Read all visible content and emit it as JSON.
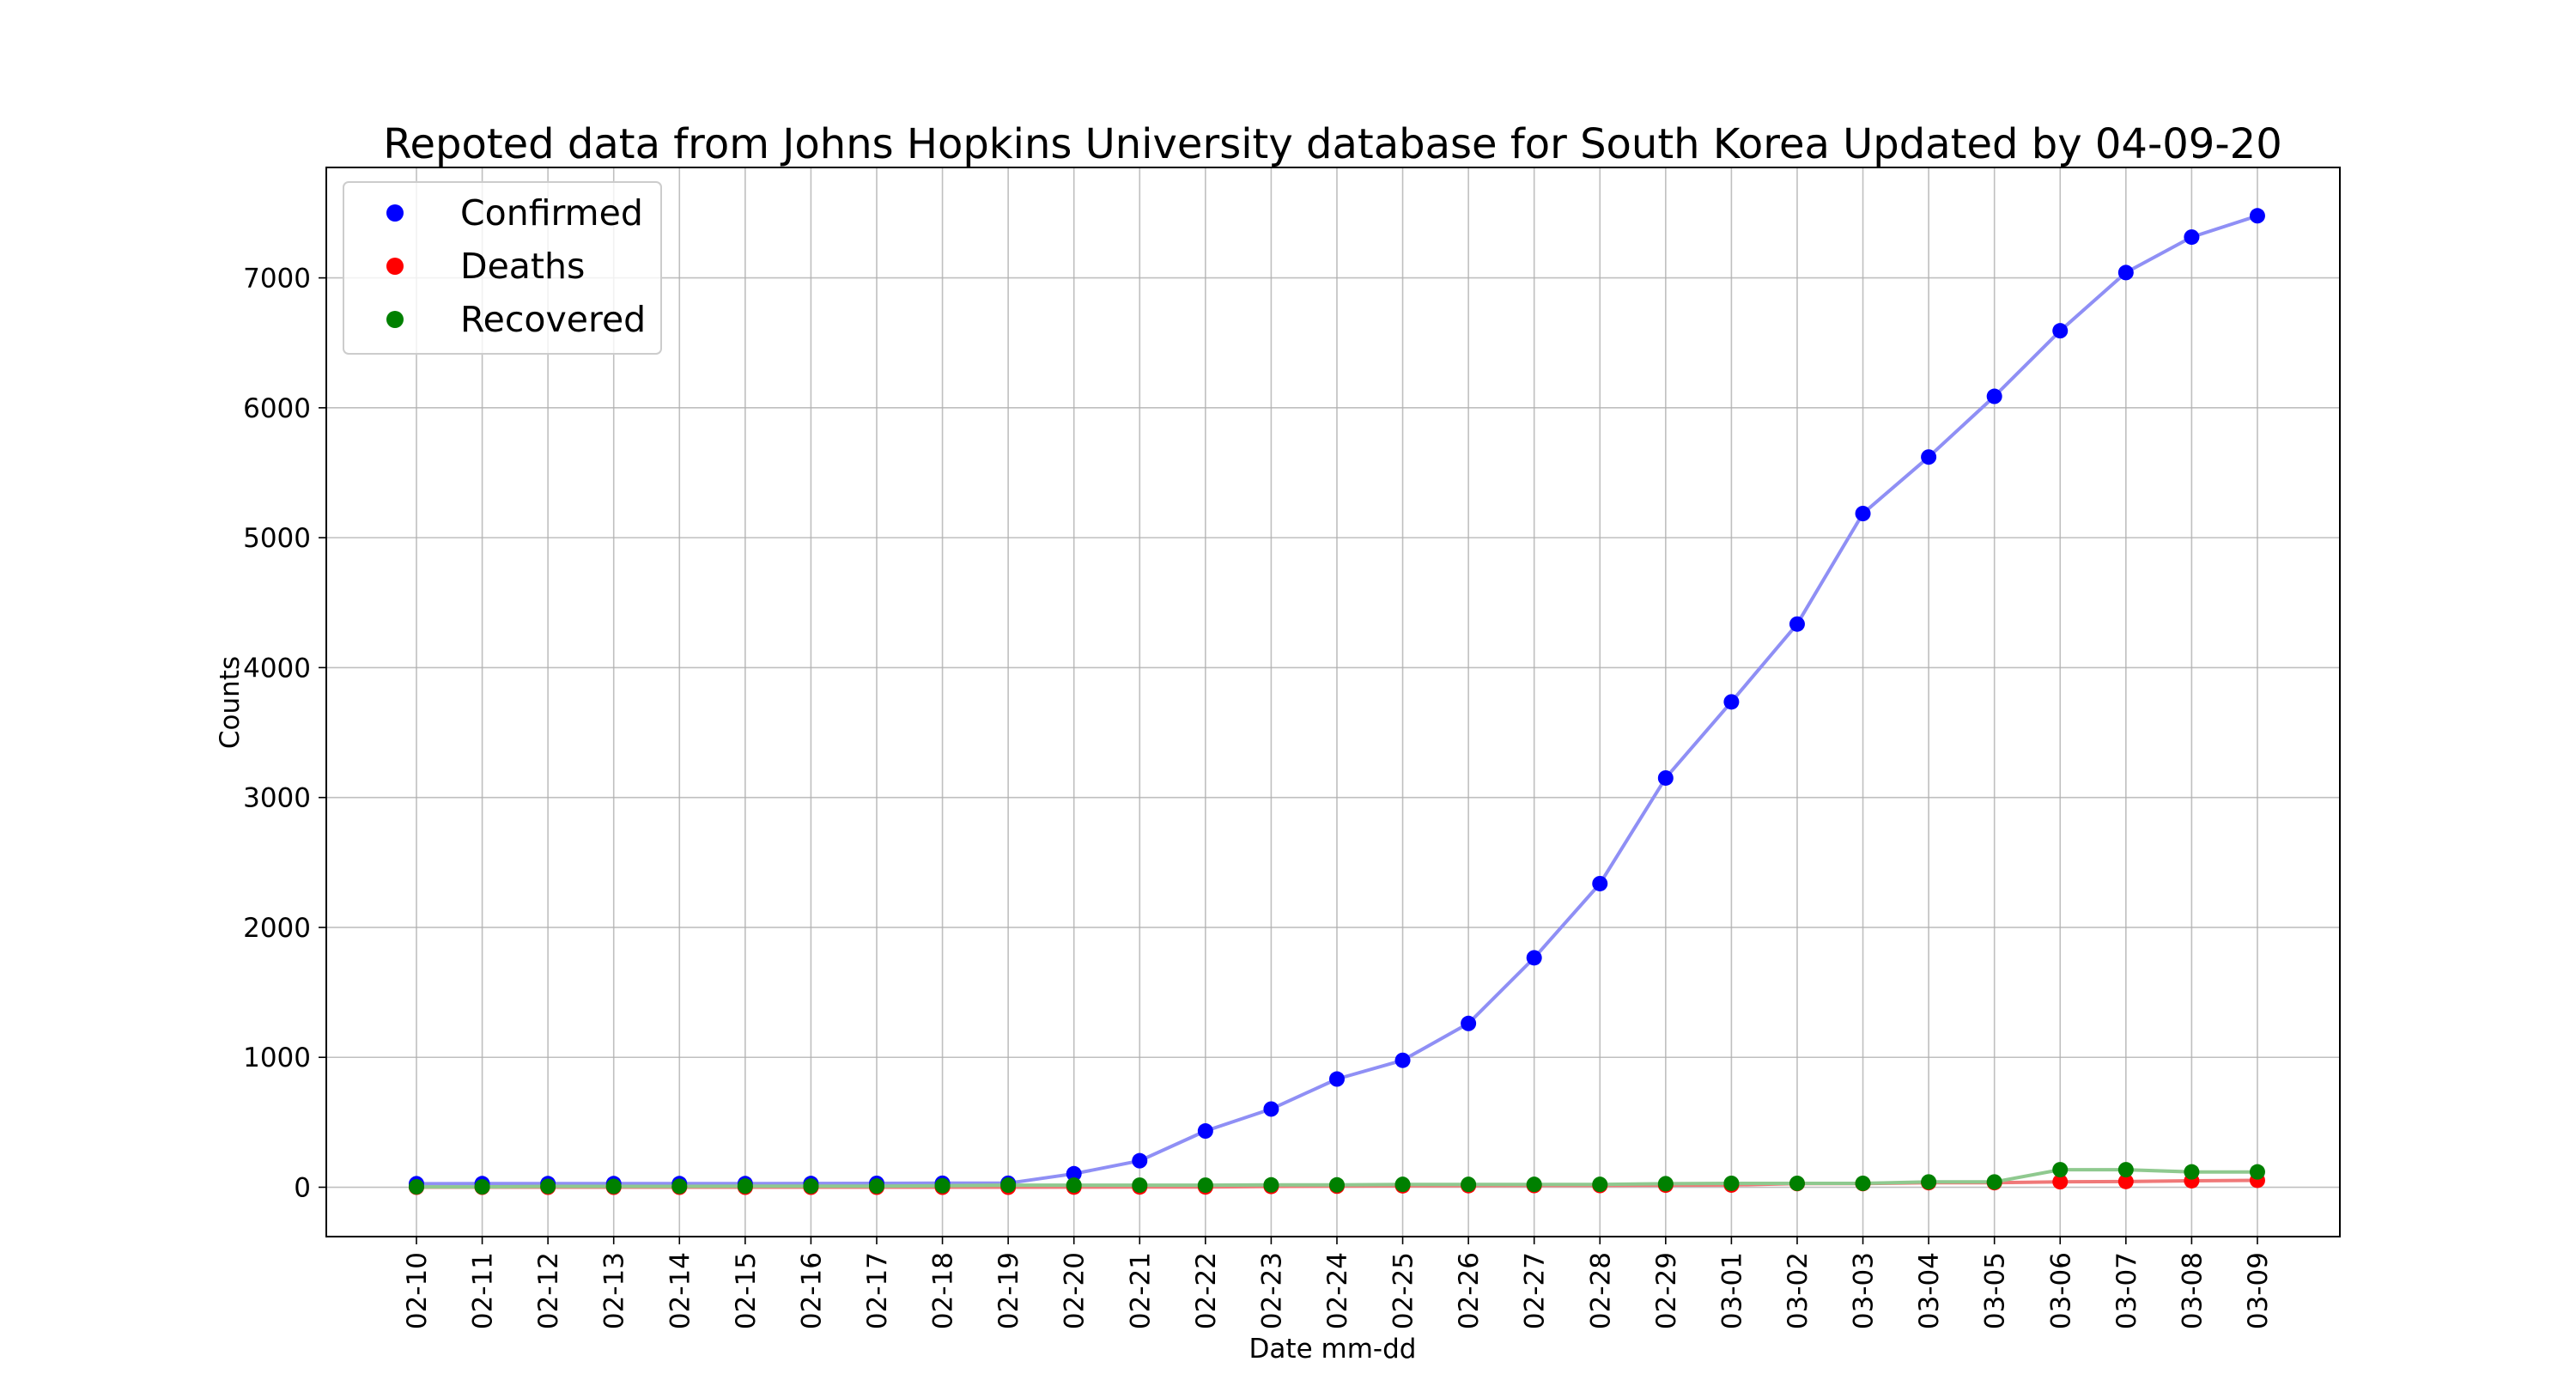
{
  "chart_data": {
    "type": "line",
    "title": "Repoted data from Johns Hopkins University database for South Korea Updated by 04-09-20",
    "xlabel": "Date mm-dd",
    "ylabel": "Counts",
    "categories": [
      "02-10",
      "02-11",
      "02-12",
      "02-13",
      "02-14",
      "02-15",
      "02-16",
      "02-17",
      "02-18",
      "02-19",
      "02-20",
      "02-21",
      "02-22",
      "02-23",
      "02-24",
      "02-25",
      "02-26",
      "02-27",
      "02-28",
      "02-29",
      "03-01",
      "03-02",
      "03-03",
      "03-04",
      "03-05",
      "03-06",
      "03-07",
      "03-08",
      "03-09"
    ],
    "ylim": [
      -380,
      7850
    ],
    "yticks": [
      0,
      1000,
      2000,
      3000,
      4000,
      5000,
      6000,
      7000
    ],
    "grid": true,
    "legend_position": "top-left",
    "series": [
      {
        "name": "Confirmed",
        "color": "#0000ff",
        "line_color": "#8f8ff5",
        "values": [
          27,
          28,
          28,
          28,
          28,
          28,
          29,
          30,
          31,
          31,
          104,
          204,
          433,
          602,
          833,
          977,
          1261,
          1766,
          2337,
          3150,
          3736,
          4335,
          5186,
          5621,
          6088,
          6593,
          7041,
          7314,
          7478
        ]
      },
      {
        "name": "Deaths",
        "color": "#ff0000",
        "line_color": "#f07878",
        "values": [
          0,
          0,
          0,
          0,
          0,
          0,
          0,
          0,
          0,
          0,
          1,
          2,
          2,
          6,
          8,
          11,
          12,
          13,
          13,
          16,
          17,
          28,
          28,
          35,
          35,
          42,
          44,
          50,
          53
        ]
      },
      {
        "name": "Recovered",
        "color": "#008000",
        "line_color": "#8fc98f",
        "values": [
          3,
          3,
          7,
          7,
          7,
          9,
          9,
          9,
          12,
          16,
          16,
          16,
          16,
          18,
          18,
          22,
          22,
          22,
          22,
          27,
          30,
          30,
          30,
          41,
          41,
          135,
          135,
          118,
          118
        ]
      }
    ]
  }
}
